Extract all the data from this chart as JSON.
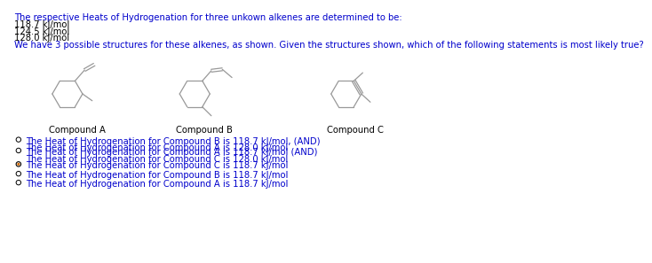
{
  "bg_color": "#ffffff",
  "text_color": "#000000",
  "blue_color": "#0000cc",
  "orange_color": "#cc6600",
  "header_line1": "The respective Heats of Hydrogenation for three unkown alkenes are determined to be:",
  "header_line2": "118.7 kJ/mol",
  "header_line3": "124.5 kJ/mol",
  "header_line4": "128.0 kJ/mol",
  "header_line5": "We have 3 possible structures for these alkenes, as shown. Given the structures shown, which of the following statements is most likely true?",
  "compound_a_label": "Compound A",
  "compound_b_label": "Compound B",
  "compound_c_label": "Compound C",
  "options": [
    {
      "line1": "The Heat of Hydrogenation for Compound B is 118.7 kJ/mol, (AND)",
      "line2": "The Heat of Hydrogenation for Compound A is 128.0 kJ/mol",
      "selected": false
    },
    {
      "line1": "The Heat of Hydrogenation for Compound A is 118.7 kJ/mol (AND)",
      "line2": "The Heat of Hydrogenation for Compound C is 128.0 kJ/mol",
      "selected": false
    },
    {
      "line1": "The Heat of Hydrogenation for Compound C is 118.7 kJ/mol",
      "line2": null,
      "selected": true
    },
    {
      "line1": "The Heat of Hydrogenation for Compound B is 118.7 kJ/mol",
      "line2": null,
      "selected": false
    },
    {
      "line1": "The Heat of Hydrogenation for Compound A is 118.7 kJ/mol",
      "line2": null,
      "selected": false
    }
  ],
  "mol_color": "#999999",
  "font_size": 7.2
}
